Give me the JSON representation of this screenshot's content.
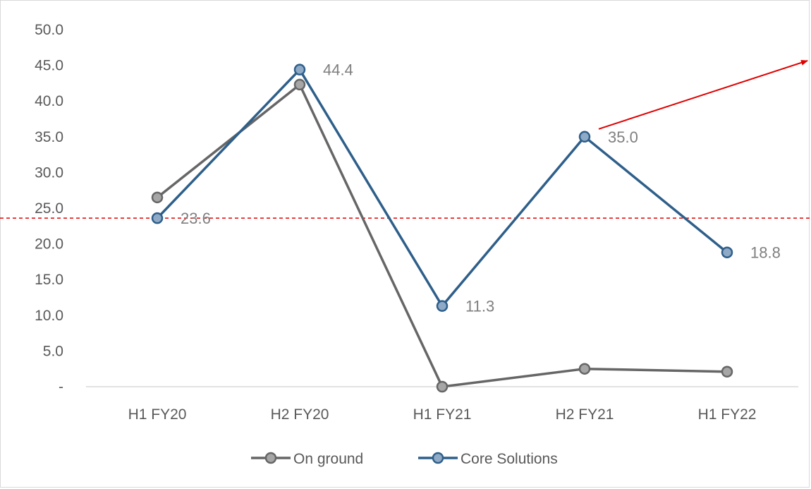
{
  "chart_data": {
    "type": "line",
    "title": "",
    "xlabel": "",
    "ylabel": "",
    "categories": [
      "H1 FY20",
      "H2 FY20",
      "H1 FY21",
      "H2 FY21",
      "H1 FY22"
    ],
    "y_tick_labels": [
      "-",
      "5.0",
      "10.0",
      "15.0",
      "20.0",
      "25.0",
      "30.0",
      "35.0",
      "40.0",
      "45.0",
      "50.0"
    ],
    "ylim": [
      0,
      50
    ],
    "grid": false,
    "legend_position": "bottom",
    "series": [
      {
        "name": "On ground",
        "values": [
          26.5,
          42.3,
          0.0,
          2.5,
          2.1
        ],
        "color": "#666666",
        "marker_fill": "#a6a6a6"
      },
      {
        "name": "Core Solutions",
        "values": [
          23.6,
          44.4,
          11.3,
          35.0,
          18.8
        ],
        "color": "#2e5f8a",
        "marker_fill": "#8faac6",
        "data_labels": [
          "23.6",
          "44.4",
          "11.3",
          "35.0",
          "18.8"
        ]
      }
    ],
    "annotations": {
      "reference_line": {
        "value": 23.6,
        "color": "#e00000",
        "style": "dashed"
      },
      "trend_arrow": {
        "color": "#e00000",
        "from_category": "H2 FY21",
        "direction": "up-right"
      }
    }
  }
}
